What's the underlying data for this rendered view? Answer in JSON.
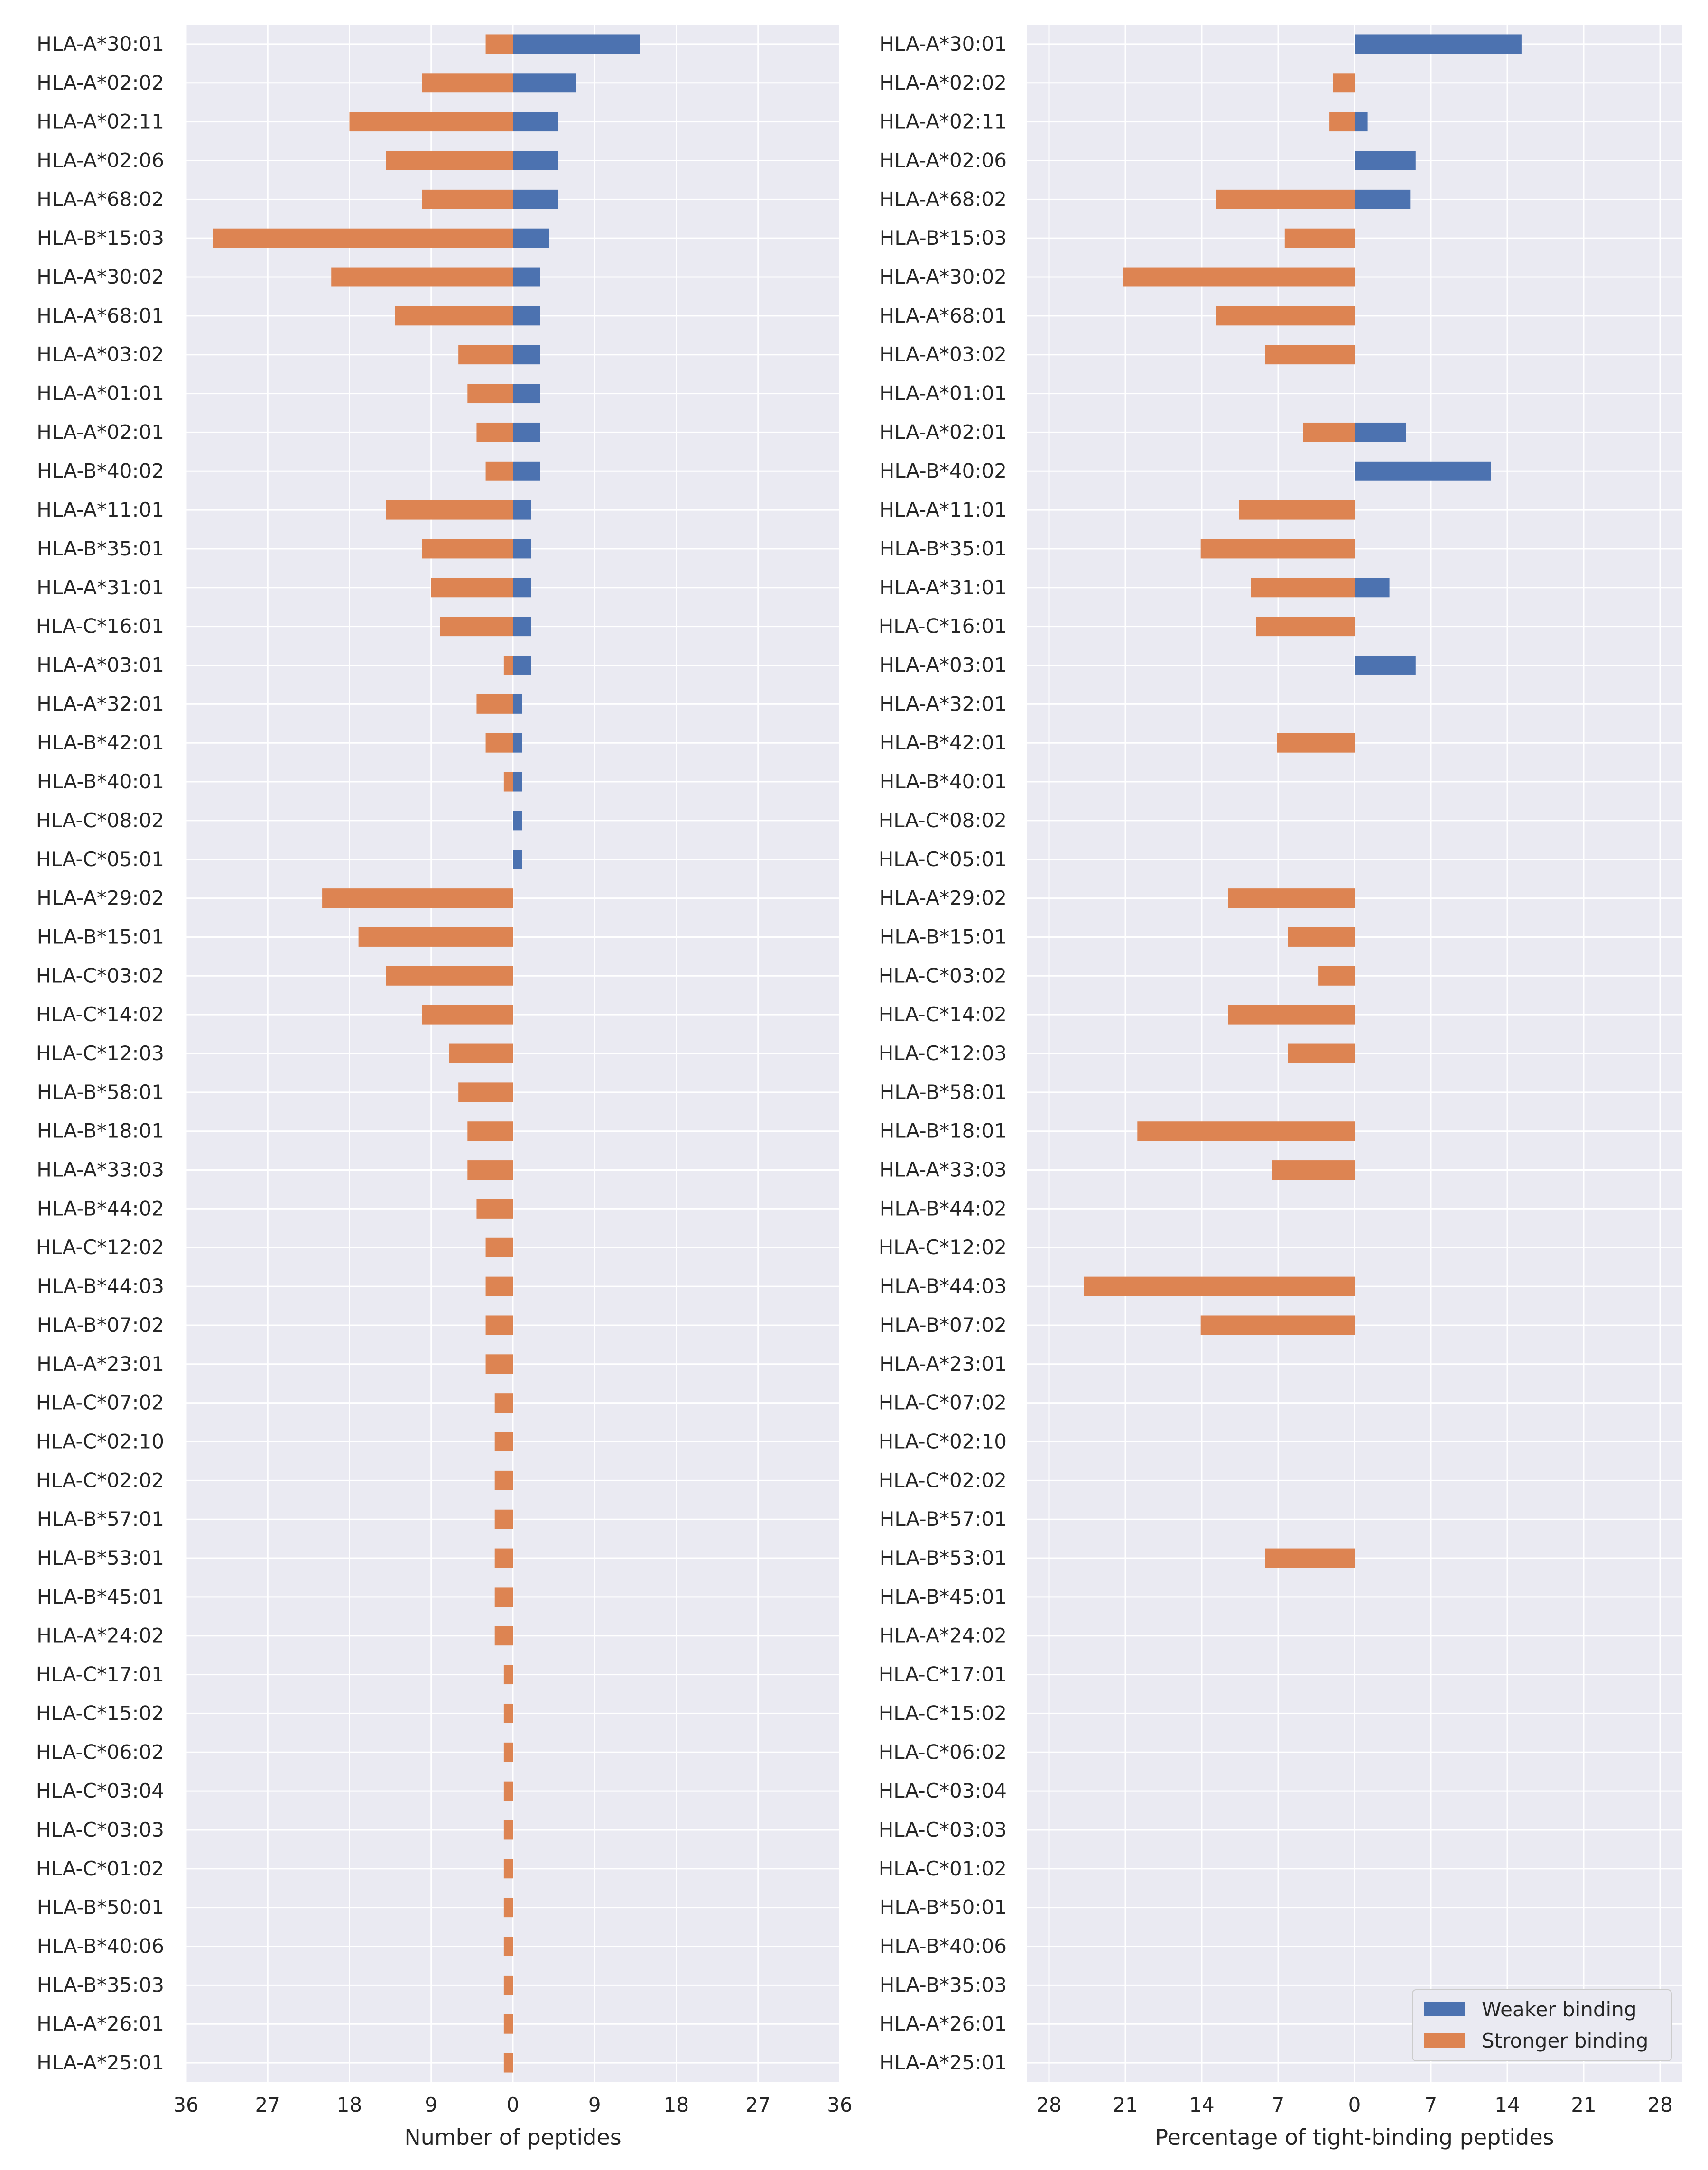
{
  "colors": {
    "weaker": "#4c72b0",
    "stronger": "#dd8452",
    "panel_background": "#eaeaf2",
    "grid": "#ffffff"
  },
  "legend": {
    "placement": "lower-right",
    "weaker_label": "Weaker binding",
    "stronger_label": "Stronger binding"
  },
  "chart_data": [
    {
      "type": "bar",
      "orientation": "horizontal-diverging",
      "xlabel": "Number of peptides",
      "xlim": [
        -36,
        36
      ],
      "xticks": [
        -36,
        -27,
        -18,
        -9,
        0,
        9,
        18,
        27,
        36
      ],
      "xtick_labels": [
        "36",
        "27",
        "18",
        "9",
        "0",
        "9",
        "18",
        "27",
        "36"
      ],
      "grid": true,
      "categories": [
        "HLA-A*30:01",
        "HLA-A*02:02",
        "HLA-A*02:11",
        "HLA-A*02:06",
        "HLA-A*68:02",
        "HLA-B*15:03",
        "HLA-A*30:02",
        "HLA-A*68:01",
        "HLA-A*03:02",
        "HLA-A*01:01",
        "HLA-A*02:01",
        "HLA-B*40:02",
        "HLA-A*11:01",
        "HLA-B*35:01",
        "HLA-A*31:01",
        "HLA-C*16:01",
        "HLA-A*03:01",
        "HLA-A*32:01",
        "HLA-B*42:01",
        "HLA-B*40:01",
        "HLA-C*08:02",
        "HLA-C*05:01",
        "HLA-A*29:02",
        "HLA-B*15:01",
        "HLA-C*03:02",
        "HLA-C*14:02",
        "HLA-C*12:03",
        "HLA-B*58:01",
        "HLA-B*18:01",
        "HLA-A*33:03",
        "HLA-B*44:02",
        "HLA-C*12:02",
        "HLA-B*44:03",
        "HLA-B*07:02",
        "HLA-A*23:01",
        "HLA-C*07:02",
        "HLA-C*02:10",
        "HLA-C*02:02",
        "HLA-B*57:01",
        "HLA-B*53:01",
        "HLA-B*45:01",
        "HLA-A*24:02",
        "HLA-C*17:01",
        "HLA-C*15:02",
        "HLA-C*06:02",
        "HLA-C*03:04",
        "HLA-C*03:03",
        "HLA-C*01:02",
        "HLA-B*50:01",
        "HLA-B*40:06",
        "HLA-B*35:03",
        "HLA-A*26:01",
        "HLA-A*25:01"
      ],
      "series": [
        {
          "name": "Weaker binding",
          "direction": "right",
          "values": [
            14,
            7,
            5,
            5,
            5,
            4,
            3,
            3,
            3,
            3,
            3,
            3,
            2,
            2,
            2,
            2,
            2,
            1,
            1,
            1,
            1,
            1,
            0,
            0,
            0,
            0,
            0,
            0,
            0,
            0,
            0,
            0,
            0,
            0,
            0,
            0,
            0,
            0,
            0,
            0,
            0,
            0,
            0,
            0,
            0,
            0,
            0,
            0,
            0,
            0,
            0,
            0,
            0
          ]
        },
        {
          "name": "Stronger binding",
          "direction": "left",
          "values": [
            3,
            10,
            18,
            14,
            10,
            33,
            20,
            13,
            6,
            5,
            4,
            3,
            14,
            10,
            9,
            8,
            1,
            4,
            3,
            1,
            0,
            0,
            21,
            17,
            14,
            10,
            7,
            6,
            5,
            5,
            4,
            3,
            3,
            3,
            3,
            2,
            2,
            2,
            2,
            2,
            2,
            2,
            1,
            1,
            1,
            1,
            1,
            1,
            1,
            1,
            1,
            1,
            1
          ]
        }
      ]
    },
    {
      "type": "bar",
      "orientation": "horizontal-diverging",
      "xlabel": "Percentage of tight-binding peptides",
      "xlim": [
        -30,
        30
      ],
      "xticks": [
        -28,
        -21,
        -14,
        -7,
        0,
        7,
        14,
        21,
        28
      ],
      "xtick_labels": [
        "28",
        "21",
        "14",
        "7",
        "0",
        "7",
        "14",
        "21",
        "28"
      ],
      "grid": true,
      "categories": [
        "HLA-A*30:01",
        "HLA-A*02:02",
        "HLA-A*02:11",
        "HLA-A*02:06",
        "HLA-A*68:02",
        "HLA-B*15:03",
        "HLA-A*30:02",
        "HLA-A*68:01",
        "HLA-A*03:02",
        "HLA-A*01:01",
        "HLA-A*02:01",
        "HLA-B*40:02",
        "HLA-A*11:01",
        "HLA-B*35:01",
        "HLA-A*31:01",
        "HLA-C*16:01",
        "HLA-A*03:01",
        "HLA-A*32:01",
        "HLA-B*42:01",
        "HLA-B*40:01",
        "HLA-C*08:02",
        "HLA-C*05:01",
        "HLA-A*29:02",
        "HLA-B*15:01",
        "HLA-C*03:02",
        "HLA-C*14:02",
        "HLA-C*12:03",
        "HLA-B*58:01",
        "HLA-B*18:01",
        "HLA-A*33:03",
        "HLA-B*44:02",
        "HLA-C*12:02",
        "HLA-B*44:03",
        "HLA-B*07:02",
        "HLA-A*23:01",
        "HLA-C*07:02",
        "HLA-C*02:10",
        "HLA-C*02:02",
        "HLA-B*57:01",
        "HLA-B*53:01",
        "HLA-B*45:01",
        "HLA-A*24:02",
        "HLA-C*17:01",
        "HLA-C*15:02",
        "HLA-C*06:02",
        "HLA-C*03:04",
        "HLA-C*03:03",
        "HLA-C*01:02",
        "HLA-B*50:01",
        "HLA-B*40:06",
        "HLA-B*35:03",
        "HLA-A*26:01",
        "HLA-A*25:01"
      ],
      "series": [
        {
          "name": "Weaker binding",
          "direction": "right",
          "values": [
            15.3,
            0,
            1.2,
            5.6,
            5.1,
            0,
            0,
            0,
            0,
            0,
            4.7,
            12.5,
            0,
            0,
            3.2,
            0,
            5.6,
            0,
            0,
            0,
            0,
            0,
            0,
            0,
            0,
            0,
            0,
            0,
            0,
            0,
            0,
            0,
            0,
            0,
            0,
            0,
            0,
            0,
            0,
            0,
            0,
            0,
            0,
            0,
            0,
            0,
            0,
            0,
            0,
            0,
            0,
            0,
            0
          ]
        },
        {
          "name": "Stronger binding",
          "direction": "left",
          "values": [
            0,
            2,
            2.3,
            0,
            12.7,
            6.4,
            21.2,
            12.7,
            8.2,
            0,
            4.7,
            0,
            10.6,
            14.1,
            9.5,
            9,
            0,
            0,
            7.1,
            0,
            0,
            0,
            11.6,
            6.1,
            3.3,
            11.6,
            6.1,
            0,
            19.9,
            7.6,
            0,
            0,
            24.8,
            14.1,
            0,
            0,
            0,
            0,
            0,
            8.2,
            0,
            0,
            0,
            0,
            0,
            0,
            0,
            0,
            0,
            0,
            0,
            0,
            0
          ]
        }
      ]
    }
  ]
}
